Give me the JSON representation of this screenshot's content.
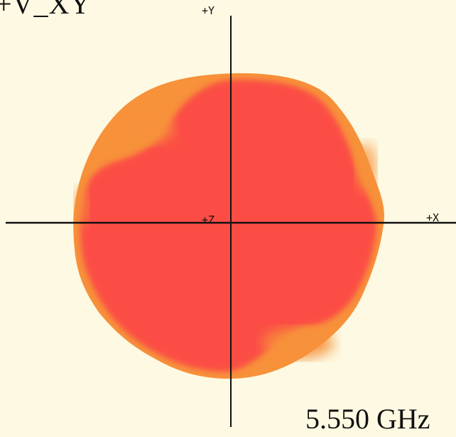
{
  "title": "+V_XY",
  "frequency": "5.550 GHz",
  "axes": {
    "y_label": "+Y",
    "z_label": "+Z",
    "x_label": "+X"
  },
  "colors": {
    "background": "#fdf9e2",
    "pattern_core": "#fb4d45",
    "pattern_edge": "#f7913a",
    "axis": "#111111"
  }
}
